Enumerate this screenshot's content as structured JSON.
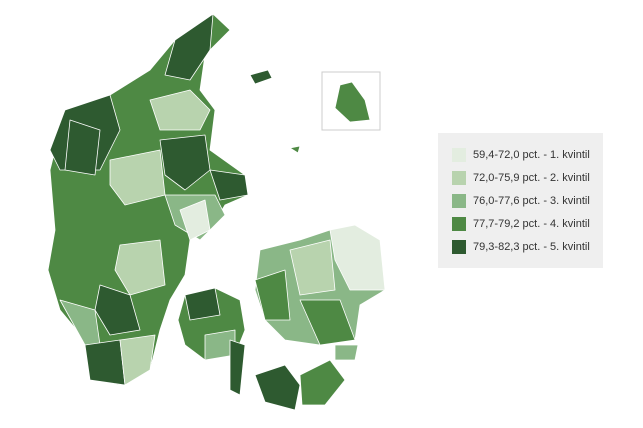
{
  "legend": {
    "items": [
      {
        "label": "59,4-72,0 pct. - 1. kvintil",
        "color": "#e3ede0"
      },
      {
        "label": "72,0-75,9 pct. - 2. kvintil",
        "color": "#b8d3ae"
      },
      {
        "label": "76,0-77,6 pct. - 3. kvintil",
        "color": "#8ab787"
      },
      {
        "label": "77,7-79,2 pct. - 4. kvintil",
        "color": "#4e8944"
      },
      {
        "label": "79,3-82,3 pct. - 5. kvintil",
        "color": "#2e5a30"
      }
    ]
  }
}
